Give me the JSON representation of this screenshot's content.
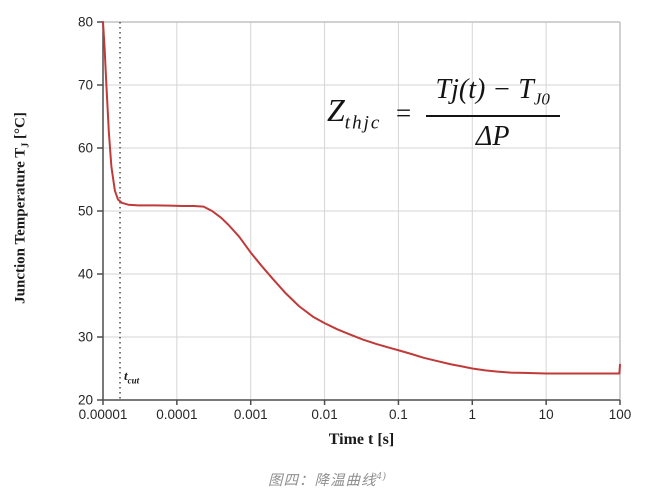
{
  "figure": {
    "caption": {
      "text": "图四：降温曲线",
      "superscript": "4)"
    },
    "formula": {
      "lhs_base": "Z",
      "lhs_sub": "thjc",
      "equals": "=",
      "numerator": {
        "term1": "Tj(t)",
        "minus": "−",
        "term2_base": "T",
        "term2_sub": "J0"
      },
      "denominator": "ΔP"
    }
  },
  "chart_data": {
    "type": "line",
    "x_scale": "log",
    "xlabel": "Time t [s]",
    "ylabel": {
      "main": "Junction Temperature T",
      "sub": "J",
      "unit": " [°C]"
    },
    "xlim": [
      1e-05,
      100
    ],
    "ylim": [
      20,
      80
    ],
    "grid": true,
    "legend": "none",
    "x_ticks": [
      {
        "label": "0.00001",
        "value": 1e-05
      },
      {
        "label": "0.0001",
        "value": 0.0001
      },
      {
        "label": "0.001",
        "value": 0.001
      },
      {
        "label": "0.01",
        "value": 0.01
      },
      {
        "label": "0.1",
        "value": 0.1
      },
      {
        "label": "1",
        "value": 1
      },
      {
        "label": "10",
        "value": 10
      },
      {
        "label": "100",
        "value": 100
      }
    ],
    "y_ticks": [
      {
        "label": "20",
        "value": 20
      },
      {
        "label": "30",
        "value": 30
      },
      {
        "label": "40",
        "value": 40
      },
      {
        "label": "50",
        "value": 50
      },
      {
        "label": "60",
        "value": 60
      },
      {
        "label": "70",
        "value": 70
      },
      {
        "label": "80",
        "value": 80
      }
    ],
    "annotation": {
      "value": 1.7e-05,
      "label_base": "t",
      "label_sub": "cut"
    },
    "series": [
      {
        "name": "junction temperature cooling curve",
        "color": "#c03a3a",
        "points": [
          [
            1e-05,
            80
          ],
          [
            1.05e-05,
            76
          ],
          [
            1.1e-05,
            71
          ],
          [
            1.2e-05,
            62.5
          ],
          [
            1.3e-05,
            57
          ],
          [
            1.45e-05,
            53.2
          ],
          [
            1.6e-05,
            51.8
          ],
          [
            1.8e-05,
            51.3
          ],
          [
            2.2e-05,
            51.0
          ],
          [
            3e-05,
            50.9
          ],
          [
            5e-05,
            50.9
          ],
          [
            8e-05,
            50.85
          ],
          [
            0.00012,
            50.8
          ],
          [
            0.00017,
            50.8
          ],
          [
            0.00023,
            50.7
          ],
          [
            0.0003,
            50.0
          ],
          [
            0.0004,
            48.9
          ],
          [
            0.0005,
            47.8
          ],
          [
            0.0007,
            45.9
          ],
          [
            0.001,
            43.4
          ],
          [
            0.0014,
            41.3
          ],
          [
            0.002,
            39.2
          ],
          [
            0.003,
            36.9
          ],
          [
            0.0045,
            34.9
          ],
          [
            0.007,
            33.2
          ],
          [
            0.01,
            32.2
          ],
          [
            0.015,
            31.2
          ],
          [
            0.022,
            30.4
          ],
          [
            0.033,
            29.6
          ],
          [
            0.05,
            28.9
          ],
          [
            0.075,
            28.3
          ],
          [
            0.1,
            27.9
          ],
          [
            0.15,
            27.3
          ],
          [
            0.22,
            26.7
          ],
          [
            0.33,
            26.2
          ],
          [
            0.5,
            25.7
          ],
          [
            0.75,
            25.3
          ],
          [
            1,
            25.0
          ],
          [
            1.5,
            24.7
          ],
          [
            2.2,
            24.5
          ],
          [
            3.3,
            24.35
          ],
          [
            5,
            24.3
          ],
          [
            7.5,
            24.25
          ],
          [
            10,
            24.2
          ],
          [
            15,
            24.2
          ],
          [
            22,
            24.2
          ],
          [
            33,
            24.2
          ],
          [
            50,
            24.2
          ],
          [
            75,
            24.2
          ],
          [
            98,
            24.2
          ],
          [
            100,
            25.6
          ]
        ]
      }
    ],
    "colors": {
      "grid": "#d6d6d6",
      "border": "#c2c2c2",
      "axis": "#4d4d4d",
      "dashed": "#3f3f3f",
      "tick_text": "#262626"
    }
  }
}
